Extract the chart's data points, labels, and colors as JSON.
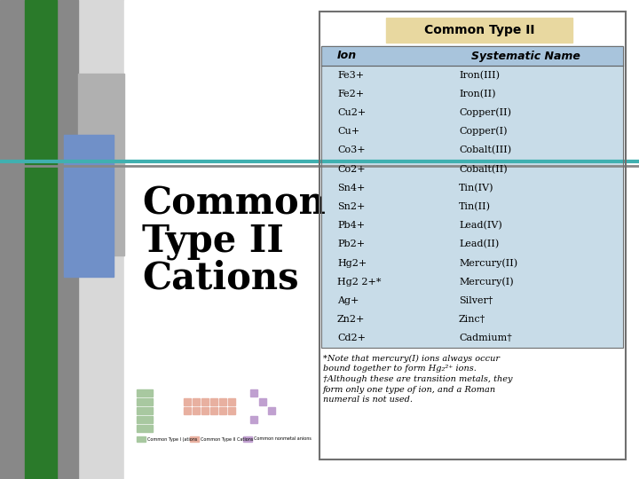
{
  "slide_bg": "#d8d8d8",
  "table_title": "Common Type II",
  "table_title_bg": "#e8d8a0",
  "table_header_bg": "#a8c4dc",
  "table_body_bg": "#c8dce8",
  "ions": [
    "Fe3+",
    "Fe2+",
    "Cu2+",
    "Cu+",
    "Co3+",
    "Co2+",
    "Sn4+",
    "Sn2+",
    "Pb4+",
    "Pb2+",
    "Hg2+",
    "Hg2 2+*",
    "Ag+",
    "Zn2+",
    "Cd2+"
  ],
  "names": [
    "Iron(III)",
    "Iron(II)",
    "Copper(II)",
    "Copper(I)",
    "Cobalt(III)",
    "Cobalt(II)",
    "Tin(IV)",
    "Tin(II)",
    "Lead(IV)",
    "Lead(II)",
    "Mercury(II)",
    "Mercury(I)",
    "Silver†",
    "Zinc†",
    "Cadmium†"
  ],
  "footnotes": [
    "*Note that mercury(I) ions always occur",
    "bound together to form Hg₂²⁺ ions.",
    "†Although these are transition metals, they",
    "form only one type of ion, and a Roman",
    "numeral is not used."
  ],
  "teal_line_color": "#40b0b0",
  "green_bar_color": "#2a7a2a",
  "blue_rect_color": "#7090c8",
  "gray_rect_color": "#b0b0b0",
  "dark_gray_color": "#888888"
}
